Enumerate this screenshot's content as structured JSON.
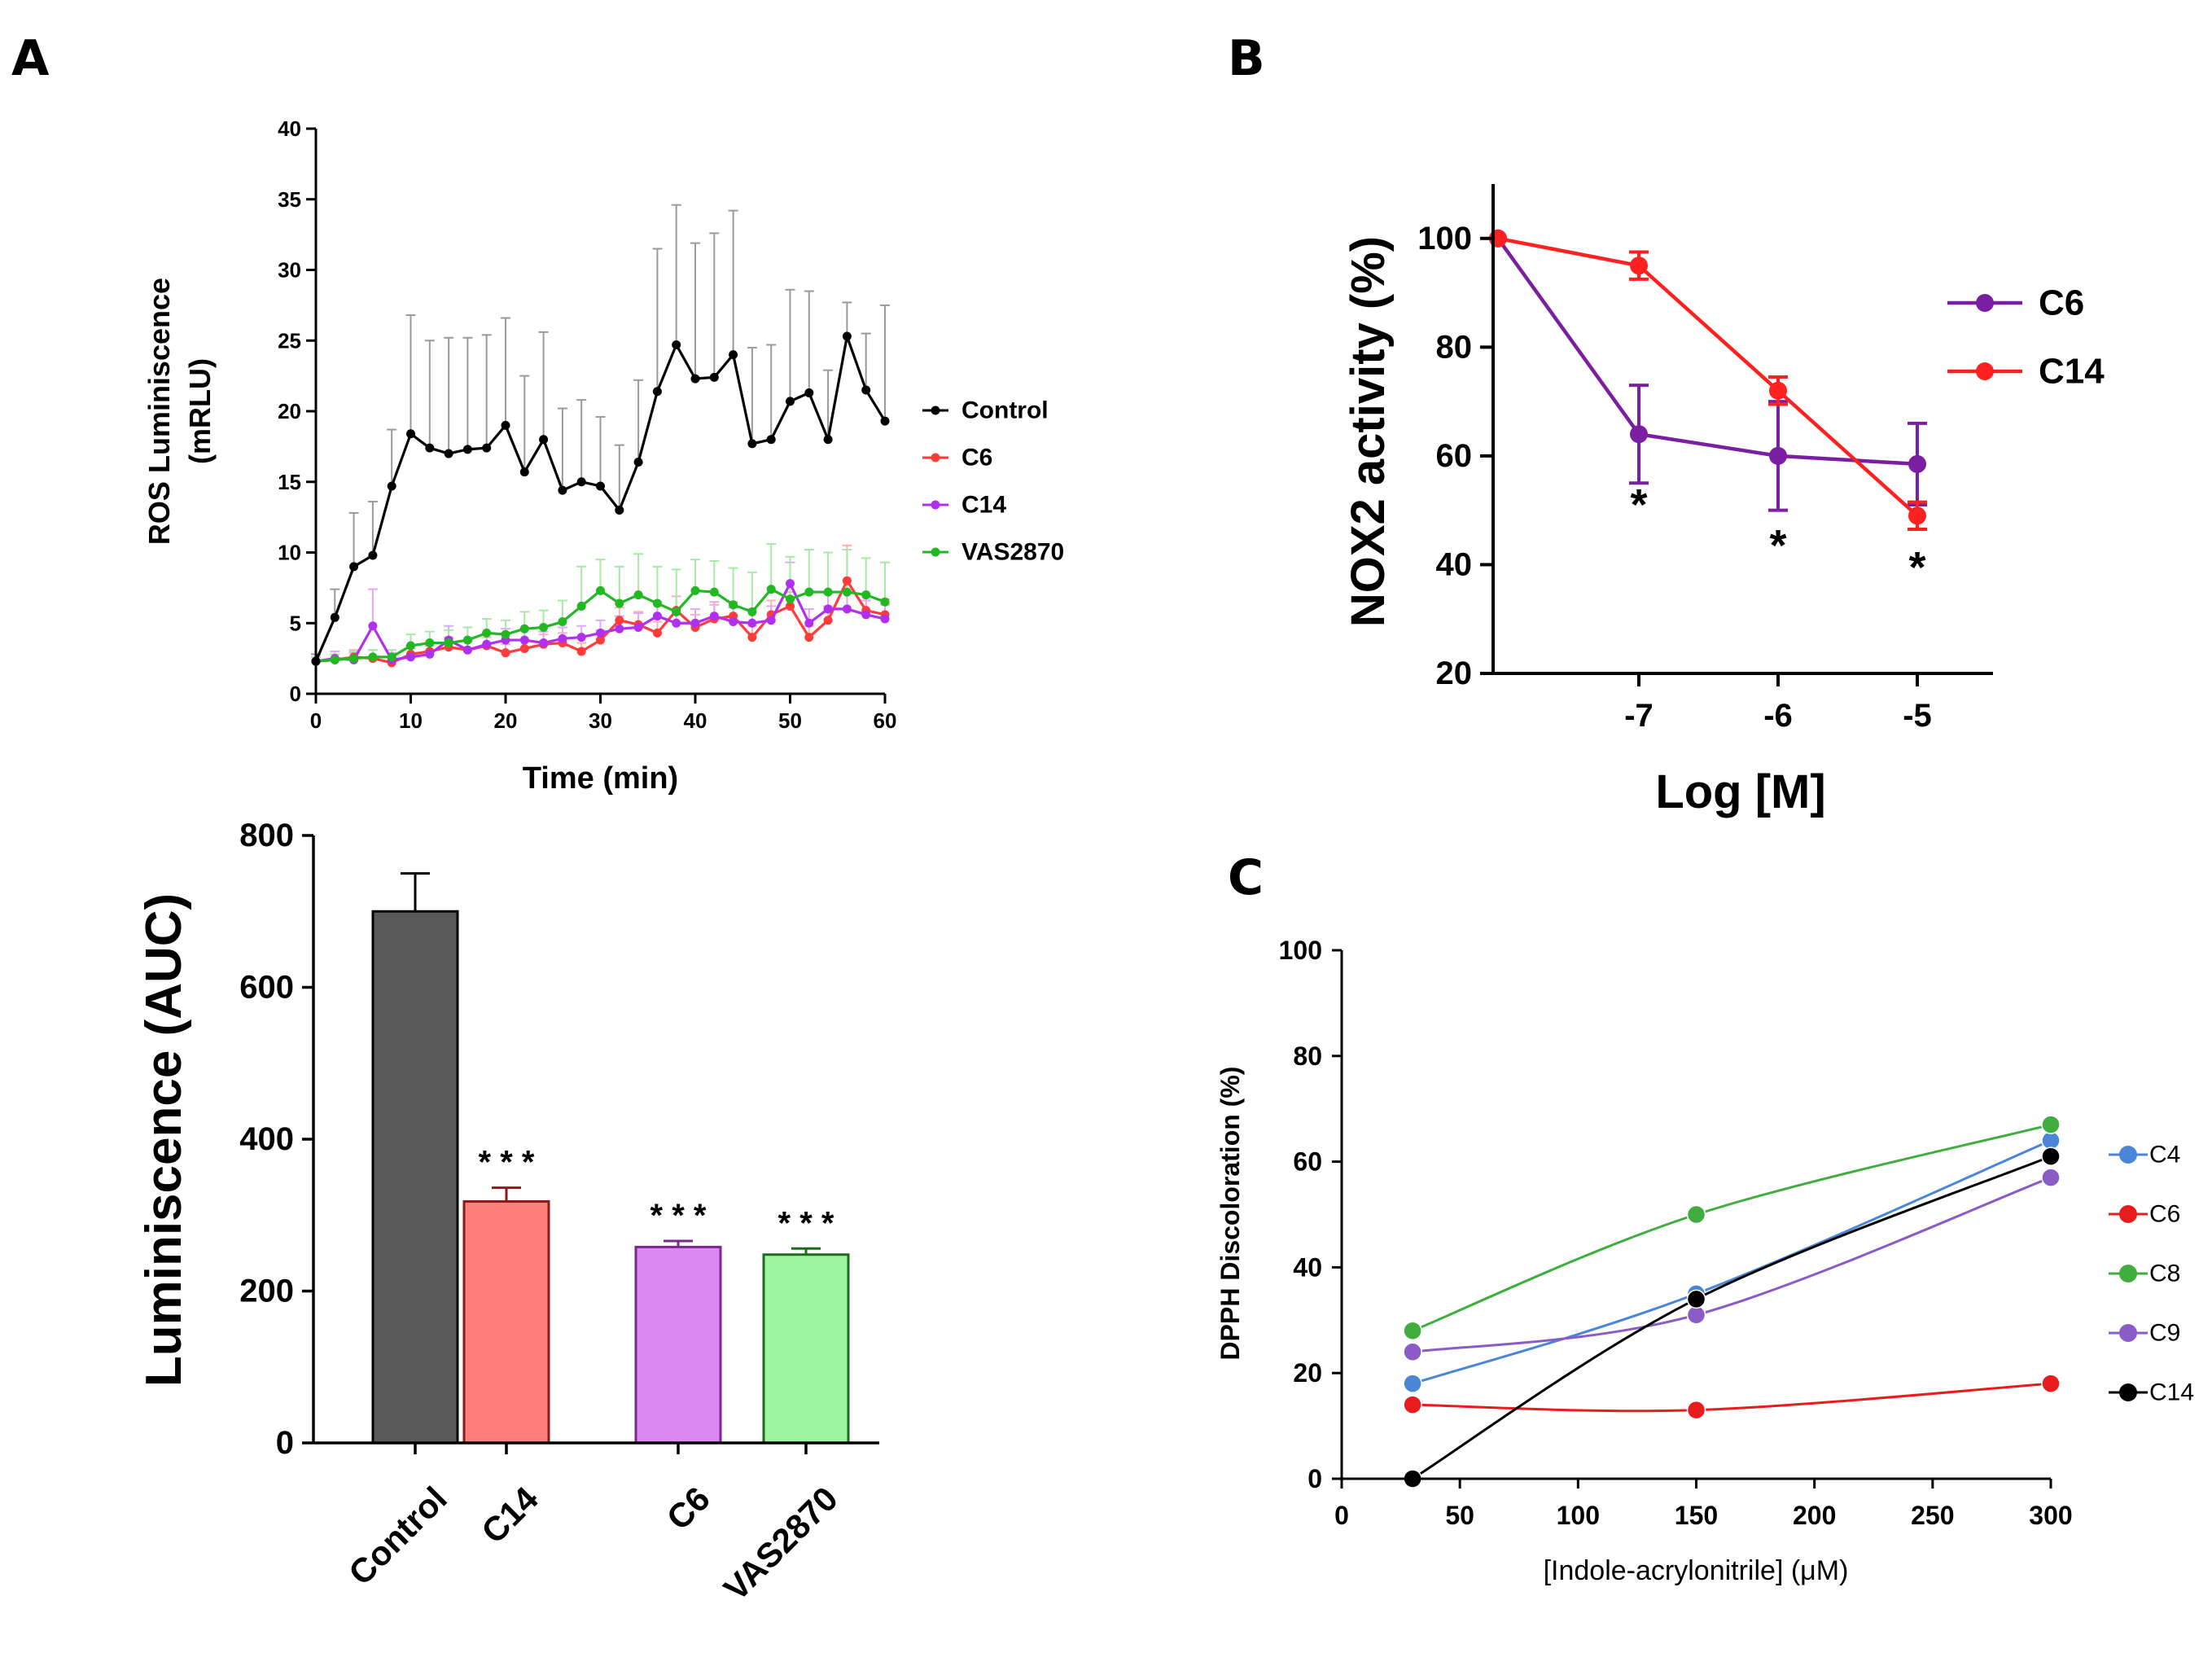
{
  "panel_labels": {
    "a": "A",
    "b": "B",
    "c": "C"
  },
  "chart_data": [
    {
      "panel": "A-top",
      "type": "line",
      "title": "",
      "xlabel": "Time (min)",
      "ylabel": "ROS Luminiscence",
      "ylabel2": "(mRLU)",
      "xlim": [
        0,
        60
      ],
      "ylim": [
        0,
        40
      ],
      "xticks": [
        0,
        10,
        20,
        30,
        40,
        50,
        60
      ],
      "yticks": [
        0,
        5,
        10,
        15,
        20,
        25,
        30,
        35,
        40
      ],
      "legend_position": "right",
      "x": [
        0,
        2,
        4,
        6,
        8,
        10,
        12,
        14,
        16,
        18,
        20,
        22,
        24,
        26,
        28,
        30,
        32,
        34,
        36,
        38,
        40,
        42,
        44,
        46,
        48,
        50,
        52,
        54,
        56,
        58,
        60
      ],
      "series": [
        {
          "name": "Control",
          "color": "#000000",
          "errcolor": "#9a9a9a",
          "values": [
            2.3,
            5.4,
            9.0,
            9.8,
            14.7,
            18.4,
            17.4,
            17.0,
            17.3,
            17.4,
            19.0,
            15.7,
            18.0,
            14.4,
            15.0,
            14.7,
            13.0,
            16.4,
            21.4,
            24.7,
            22.3,
            22.4,
            24.0,
            17.7,
            18.0,
            20.7,
            21.3,
            18.0,
            25.3,
            21.5,
            19.3
          ],
          "errors": [
            0.5,
            2.0,
            3.8,
            3.8,
            4.0,
            8.4,
            7.6,
            8.2,
            7.9,
            8.0,
            7.6,
            6.8,
            7.6,
            5.8,
            5.8,
            4.9,
            4.6,
            5.8,
            10.1,
            9.9,
            9.6,
            10.2,
            10.2,
            6.8,
            6.7,
            7.9,
            7.2,
            4.9,
            2.4,
            4.0,
            8.2
          ]
        },
        {
          "name": "C6",
          "color": "#ff3b3b",
          "errcolor": "#ffb0b0",
          "values": [
            2.3,
            2.4,
            2.6,
            2.5,
            2.2,
            2.8,
            3.0,
            3.3,
            3.1,
            3.4,
            2.9,
            3.2,
            3.5,
            3.6,
            3.0,
            3.8,
            5.2,
            4.9,
            4.3,
            5.9,
            4.7,
            5.3,
            5.5,
            4.0,
            5.6,
            6.2,
            4.0,
            5.2,
            8.0,
            5.9,
            5.6
          ],
          "errors": [
            0.3,
            0.4,
            0.5,
            0.6,
            0.4,
            0.6,
            0.6,
            0.7,
            0.6,
            0.6,
            0.6,
            0.6,
            0.7,
            0.7,
            0.6,
            0.7,
            0.9,
            0.9,
            0.8,
            1.0,
            0.9,
            1.0,
            1.0,
            0.8,
            1.0,
            1.0,
            0.8,
            1.0,
            2.5,
            1.2,
            1.1
          ]
        },
        {
          "name": "C14",
          "color": "#b030f0",
          "errcolor": "#e0a8f8",
          "values": [
            2.3,
            2.5,
            2.4,
            4.8,
            2.4,
            2.6,
            2.8,
            3.8,
            3.1,
            3.5,
            3.8,
            3.8,
            3.6,
            3.9,
            4.0,
            4.3,
            4.6,
            4.7,
            5.5,
            5.0,
            5.0,
            5.5,
            5.1,
            5.0,
            5.2,
            7.8,
            5.0,
            6.0,
            6.0,
            5.6,
            5.3
          ],
          "errors": [
            0.3,
            0.5,
            0.5,
            2.6,
            0.5,
            0.6,
            0.6,
            1.0,
            0.7,
            0.8,
            0.8,
            0.8,
            0.8,
            0.8,
            0.8,
            0.9,
            0.9,
            1.0,
            1.0,
            1.0,
            1.0,
            1.0,
            1.0,
            1.0,
            1.0,
            1.5,
            1.0,
            1.1,
            1.2,
            1.0,
            1.0
          ]
        },
        {
          "name": "VAS2870",
          "color": "#22b822",
          "errcolor": "#a8e8a8",
          "values": [
            2.3,
            2.4,
            2.5,
            2.6,
            2.6,
            3.4,
            3.6,
            3.6,
            3.8,
            4.3,
            4.2,
            4.6,
            4.7,
            5.1,
            6.2,
            7.3,
            6.4,
            7.0,
            6.4,
            5.8,
            7.3,
            7.2,
            6.3,
            5.8,
            7.4,
            6.7,
            7.2,
            7.2,
            7.2,
            7.0,
            6.5
          ],
          "errors": [
            0.3,
            0.4,
            0.5,
            0.5,
            0.5,
            0.8,
            0.8,
            0.9,
            0.9,
            1.0,
            1.0,
            1.2,
            1.2,
            1.5,
            2.8,
            2.2,
            2.6,
            2.9,
            2.6,
            3.0,
            2.2,
            2.2,
            2.6,
            2.8,
            3.2,
            3.0,
            3.0,
            2.8,
            3.0,
            2.6,
            2.8
          ]
        }
      ]
    },
    {
      "panel": "A-bottom",
      "type": "bar",
      "title": "",
      "xlabel": "",
      "ylabel": "Luminiscence (AUC)",
      "ylim": [
        0,
        800
      ],
      "yticks": [
        0,
        200,
        400,
        600,
        800
      ],
      "categories": [
        "Control",
        "C14",
        "C6",
        "VAS2870"
      ],
      "values": [
        700,
        318,
        258,
        248
      ],
      "errors": [
        50,
        18,
        8,
        8
      ],
      "annotations": [
        "",
        "* * *",
        "* * *",
        "* * *"
      ],
      "fills": [
        "#595959",
        "#ff7f7f",
        "#dd88f2",
        "#a0f5a0"
      ],
      "strokes": [
        "#000000",
        "#8b1a1a",
        "#7a2a8a",
        "#1e6b1e"
      ]
    },
    {
      "panel": "B",
      "type": "line",
      "title": "",
      "xlabel": "Log [M]",
      "ylabel": "NOX2 activity (%)",
      "xlim": [
        -8,
        -4.5
      ],
      "ylim": [
        20,
        110
      ],
      "xticks": [
        -7,
        -6,
        -5
      ],
      "xtick_labels": [
        "-7",
        "-6",
        "-5"
      ],
      "yticks": [
        20,
        40,
        60,
        80,
        100
      ],
      "legend_position": "top-right",
      "x": [
        -8,
        -7,
        -6,
        -5
      ],
      "series": [
        {
          "name": "C6",
          "color": "#7a1fa2",
          "values": [
            100,
            64,
            60,
            58.5
          ],
          "errors": [
            0,
            9,
            10,
            7.5
          ]
        },
        {
          "name": "C14",
          "color": "#ff2020",
          "values": [
            100,
            95,
            72,
            49
          ],
          "errors": [
            0,
            2.5,
            2.5,
            2.5
          ]
        }
      ],
      "annotations": [
        {
          "x": -7,
          "y": 51,
          "text": "*"
        },
        {
          "x": -6,
          "y": 43.5,
          "text": "*"
        },
        {
          "x": -5,
          "y": 39.5,
          "text": "*"
        }
      ]
    },
    {
      "panel": "C",
      "type": "line",
      "title": "",
      "xlabel": "[Indole-acrylonitrile] (μM)",
      "ylabel": "DPPH Discoloration (%)",
      "xlim": [
        0,
        300
      ],
      "ylim": [
        0,
        100
      ],
      "xticks": [
        0,
        50,
        100,
        150,
        200,
        250,
        300
      ],
      "yticks": [
        0,
        20,
        40,
        60,
        80,
        100
      ],
      "legend_position": "right",
      "x": [
        30,
        150,
        300
      ],
      "series": [
        {
          "name": "C4",
          "color": "#4a86d8",
          "values": [
            18,
            35,
            64
          ]
        },
        {
          "name": "C6",
          "color": "#e81c1c",
          "values": [
            14,
            13,
            18
          ]
        },
        {
          "name": "C8",
          "color": "#3fae3f",
          "values": [
            28,
            50,
            67
          ]
        },
        {
          "name": "C9",
          "color": "#8a5cc7",
          "values": [
            24,
            31,
            57
          ]
        },
        {
          "name": "C14",
          "color": "#000000",
          "values": [
            0,
            34,
            61
          ]
        }
      ]
    }
  ]
}
